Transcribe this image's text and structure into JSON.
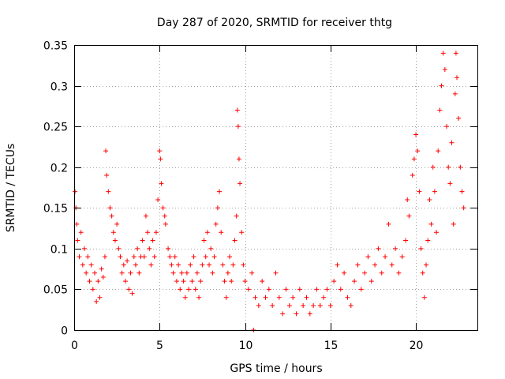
{
  "chart_data": {
    "type": "scatter",
    "title": "Day 287 of 2020, SRMTID for receiver thtg",
    "xlabel": "GPS time / hours",
    "ylabel": "SRMTID / TECUs",
    "xlim": [
      0,
      23.6
    ],
    "ylim": [
      0,
      0.35
    ],
    "x_ticks": [
      0,
      5,
      10,
      15,
      20
    ],
    "x_tick_labels": [
      "0",
      "5",
      "10",
      "15",
      "20"
    ],
    "y_ticks": [
      0,
      0.05,
      0.1,
      0.15,
      0.2,
      0.25,
      0.3,
      0.35
    ],
    "y_tick_labels": [
      "0",
      "0.05",
      "0.1",
      "0.15",
      "0.2",
      "0.25",
      "0.3",
      "0.35"
    ],
    "grid": true,
    "marker": "plus",
    "color": "#ff0000",
    "series": [
      {
        "name": "SRMTID",
        "points": [
          [
            0.05,
            0.17
          ],
          [
            0.1,
            0.15
          ],
          [
            0.15,
            0.13
          ],
          [
            0.2,
            0.11
          ],
          [
            0.3,
            0.09
          ],
          [
            0.4,
            0.12
          ],
          [
            0.5,
            0.08
          ],
          [
            0.6,
            0.1
          ],
          [
            0.7,
            0.07
          ],
          [
            0.8,
            0.09
          ],
          [
            0.9,
            0.06
          ],
          [
            1.0,
            0.08
          ],
          [
            1.1,
            0.05
          ],
          [
            1.2,
            0.07
          ],
          [
            1.3,
            0.035
          ],
          [
            1.4,
            0.06
          ],
          [
            1.5,
            0.04
          ],
          [
            1.6,
            0.075
          ],
          [
            1.7,
            0.065
          ],
          [
            1.8,
            0.09
          ],
          [
            1.85,
            0.22
          ],
          [
            1.9,
            0.19
          ],
          [
            2.0,
            0.17
          ],
          [
            2.1,
            0.15
          ],
          [
            2.2,
            0.14
          ],
          [
            2.3,
            0.12
          ],
          [
            2.4,
            0.11
          ],
          [
            2.5,
            0.13
          ],
          [
            2.6,
            0.1
          ],
          [
            2.7,
            0.09
          ],
          [
            2.8,
            0.07
          ],
          [
            2.9,
            0.08
          ],
          [
            3.0,
            0.06
          ],
          [
            3.1,
            0.085
          ],
          [
            3.2,
            0.05
          ],
          [
            3.3,
            0.07
          ],
          [
            3.4,
            0.045
          ],
          [
            3.5,
            0.09
          ],
          [
            3.6,
            0.08
          ],
          [
            3.7,
            0.1
          ],
          [
            3.8,
            0.07
          ],
          [
            3.9,
            0.09
          ],
          [
            4.0,
            0.11
          ],
          [
            4.1,
            0.09
          ],
          [
            4.2,
            0.14
          ],
          [
            4.3,
            0.12
          ],
          [
            4.4,
            0.1
          ],
          [
            4.5,
            0.08
          ],
          [
            4.6,
            0.11
          ],
          [
            4.7,
            0.09
          ],
          [
            4.8,
            0.12
          ],
          [
            4.9,
            0.16
          ],
          [
            5.0,
            0.22
          ],
          [
            5.05,
            0.21
          ],
          [
            5.1,
            0.18
          ],
          [
            5.2,
            0.15
          ],
          [
            5.3,
            0.14
          ],
          [
            5.35,
            0.13
          ],
          [
            5.5,
            0.1
          ],
          [
            5.6,
            0.09
          ],
          [
            5.7,
            0.08
          ],
          [
            5.8,
            0.07
          ],
          [
            5.9,
            0.09
          ],
          [
            6.0,
            0.06
          ],
          [
            6.1,
            0.08
          ],
          [
            6.2,
            0.05
          ],
          [
            6.3,
            0.07
          ],
          [
            6.4,
            0.06
          ],
          [
            6.5,
            0.04
          ],
          [
            6.6,
            0.07
          ],
          [
            6.7,
            0.05
          ],
          [
            6.8,
            0.08
          ],
          [
            6.9,
            0.06
          ],
          [
            7.0,
            0.09
          ],
          [
            7.1,
            0.05
          ],
          [
            7.2,
            0.07
          ],
          [
            7.3,
            0.04
          ],
          [
            7.4,
            0.06
          ],
          [
            7.5,
            0.08
          ],
          [
            7.6,
            0.11
          ],
          [
            7.7,
            0.09
          ],
          [
            7.8,
            0.12
          ],
          [
            7.9,
            0.08
          ],
          [
            8.0,
            0.1
          ],
          [
            8.1,
            0.07
          ],
          [
            8.2,
            0.09
          ],
          [
            8.3,
            0.13
          ],
          [
            8.4,
            0.15
          ],
          [
            8.5,
            0.17
          ],
          [
            8.6,
            0.12
          ],
          [
            8.7,
            0.08
          ],
          [
            8.8,
            0.06
          ],
          [
            8.9,
            0.04
          ],
          [
            9.0,
            0.07
          ],
          [
            9.1,
            0.09
          ],
          [
            9.2,
            0.06
          ],
          [
            9.3,
            0.08
          ],
          [
            9.4,
            0.11
          ],
          [
            9.5,
            0.14
          ],
          [
            9.55,
            0.27
          ],
          [
            9.6,
            0.25
          ],
          [
            9.65,
            0.21
          ],
          [
            9.7,
            0.18
          ],
          [
            9.8,
            0.12
          ],
          [
            9.9,
            0.08
          ],
          [
            10.0,
            0.06
          ],
          [
            10.2,
            0.05
          ],
          [
            10.4,
            0.07
          ],
          [
            10.5,
            0.0
          ],
          [
            10.6,
            0.04
          ],
          [
            10.8,
            0.03
          ],
          [
            11.0,
            0.06
          ],
          [
            11.2,
            0.04
          ],
          [
            11.4,
            0.05
          ],
          [
            11.6,
            0.03
          ],
          [
            11.8,
            0.07
          ],
          [
            12.0,
            0.04
          ],
          [
            12.2,
            0.02
          ],
          [
            12.4,
            0.05
          ],
          [
            12.6,
            0.03
          ],
          [
            12.8,
            0.04
          ],
          [
            13.0,
            0.02
          ],
          [
            13.2,
            0.05
          ],
          [
            13.4,
            0.03
          ],
          [
            13.6,
            0.04
          ],
          [
            13.8,
            0.02
          ],
          [
            14.0,
            0.03
          ],
          [
            14.2,
            0.05
          ],
          [
            14.4,
            0.03
          ],
          [
            14.6,
            0.04
          ],
          [
            14.8,
            0.05
          ],
          [
            15.0,
            0.03
          ],
          [
            15.2,
            0.06
          ],
          [
            15.4,
            0.08
          ],
          [
            15.6,
            0.05
          ],
          [
            15.8,
            0.07
          ],
          [
            16.0,
            0.04
          ],
          [
            16.2,
            0.03
          ],
          [
            16.4,
            0.06
          ],
          [
            16.6,
            0.08
          ],
          [
            16.8,
            0.05
          ],
          [
            17.0,
            0.07
          ],
          [
            17.2,
            0.09
          ],
          [
            17.4,
            0.06
          ],
          [
            17.6,
            0.08
          ],
          [
            17.8,
            0.1
          ],
          [
            18.0,
            0.07
          ],
          [
            18.2,
            0.09
          ],
          [
            18.4,
            0.13
          ],
          [
            18.6,
            0.08
          ],
          [
            18.8,
            0.1
          ],
          [
            19.0,
            0.07
          ],
          [
            19.2,
            0.09
          ],
          [
            19.4,
            0.11
          ],
          [
            19.5,
            0.16
          ],
          [
            19.6,
            0.14
          ],
          [
            19.8,
            0.19
          ],
          [
            19.9,
            0.21
          ],
          [
            20.0,
            0.24
          ],
          [
            20.1,
            0.22
          ],
          [
            20.2,
            0.17
          ],
          [
            20.3,
            0.1
          ],
          [
            20.4,
            0.07
          ],
          [
            20.5,
            0.04
          ],
          [
            20.6,
            0.08
          ],
          [
            20.7,
            0.11
          ],
          [
            20.8,
            0.16
          ],
          [
            20.9,
            0.13
          ],
          [
            21.0,
            0.2
          ],
          [
            21.1,
            0.17
          ],
          [
            21.2,
            0.12
          ],
          [
            21.3,
            0.22
          ],
          [
            21.4,
            0.27
          ],
          [
            21.5,
            0.3
          ],
          [
            21.6,
            0.34
          ],
          [
            21.7,
            0.32
          ],
          [
            21.8,
            0.25
          ],
          [
            21.9,
            0.2
          ],
          [
            22.0,
            0.18
          ],
          [
            22.1,
            0.23
          ],
          [
            22.2,
            0.13
          ],
          [
            22.3,
            0.29
          ],
          [
            22.35,
            0.34
          ],
          [
            22.4,
            0.31
          ],
          [
            22.5,
            0.26
          ],
          [
            22.6,
            0.2
          ],
          [
            22.7,
            0.17
          ],
          [
            22.8,
            0.15
          ]
        ]
      }
    ]
  }
}
